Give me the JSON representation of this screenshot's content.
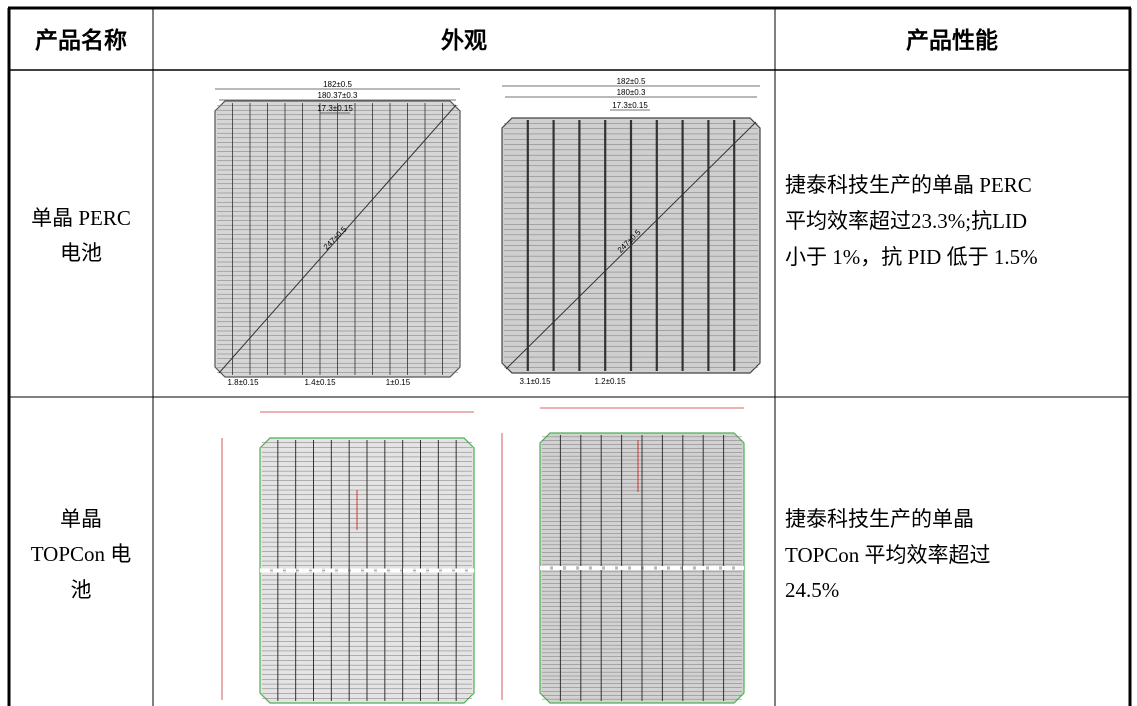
{
  "table": {
    "header": [
      "产品名称",
      "外观",
      "产品性能"
    ],
    "rows": [
      {
        "name": [
          "单晶 PERC",
          "电池"
        ],
        "drawings": [
          {
            "labels": [
              "182±0.5",
              "180.37±0.3",
              "17.3±0.15",
              "247±0.5",
              "1.8±0.15",
              "1.4±0.15",
              "1±0.15"
            ]
          },
          {
            "labels": [
              "182±0.5",
              "180±0.3",
              "17.3±0.15",
              "247±0.5",
              "3.1±0.15",
              "1.2±0.15"
            ]
          }
        ],
        "performance": [
          "捷泰科技生产的单晶 PERC",
          "平均效率超过23.3%;抗LID",
          "小于 1%，抗 PID 低于 1.5%"
        ]
      },
      {
        "name": [
          "单晶",
          "TOPCon 电",
          "池"
        ],
        "performance": [
          "捷泰科技生产的单晶",
          "TOPCon 平均效率超过",
          "24.5%"
        ]
      }
    ]
  }
}
